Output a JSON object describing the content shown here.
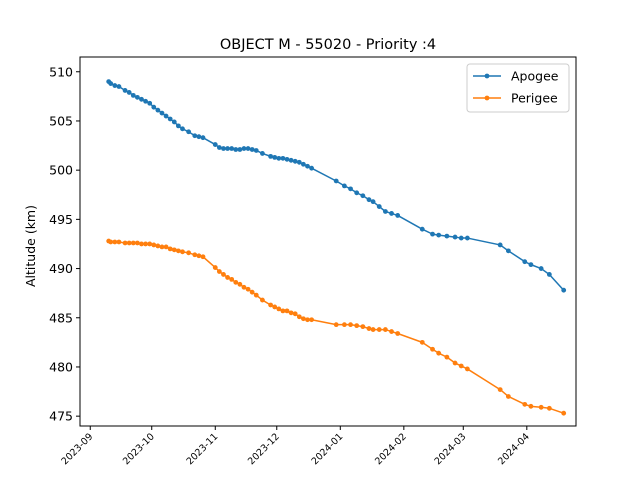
{
  "chart_data": {
    "type": "line",
    "title": "OBJECT M - 55020 - Priority :4",
    "xlabel": "",
    "ylabel": "Altitude (km)",
    "x_axis_type": "date",
    "xlim": [
      "2023-08-27",
      "2024-04-25"
    ],
    "ylim": [
      474,
      511.5
    ],
    "x_ticks": [
      "2023-09",
      "2023-10",
      "2023-11",
      "2023-12",
      "2024-01",
      "2024-02",
      "2024-03",
      "2024-04"
    ],
    "y_ticks": [
      475,
      480,
      485,
      490,
      495,
      500,
      505,
      510
    ],
    "legend_position": "upper right",
    "grid": false,
    "series": [
      {
        "name": "Apogee",
        "color": "#1f77b4",
        "marker": "circle",
        "points": [
          [
            "2023-09-10",
            509.0
          ],
          [
            "2023-09-11",
            508.8
          ],
          [
            "2023-09-13",
            508.6
          ],
          [
            "2023-09-15",
            508.5
          ],
          [
            "2023-09-18",
            508.1
          ],
          [
            "2023-09-20",
            507.9
          ],
          [
            "2023-09-22",
            507.6
          ],
          [
            "2023-09-24",
            507.4
          ],
          [
            "2023-09-26",
            507.2
          ],
          [
            "2023-09-28",
            507.0
          ],
          [
            "2023-09-30",
            506.8
          ],
          [
            "2023-10-02",
            506.4
          ],
          [
            "2023-10-04",
            506.1
          ],
          [
            "2023-10-06",
            505.8
          ],
          [
            "2023-10-08",
            505.5
          ],
          [
            "2023-10-10",
            505.2
          ],
          [
            "2023-10-12",
            504.9
          ],
          [
            "2023-10-14",
            504.5
          ],
          [
            "2023-10-16",
            504.2
          ],
          [
            "2023-10-19",
            503.9
          ],
          [
            "2023-10-22",
            503.5
          ],
          [
            "2023-10-24",
            503.4
          ],
          [
            "2023-10-26",
            503.3
          ],
          [
            "2023-11-01",
            502.6
          ],
          [
            "2023-11-03",
            502.3
          ],
          [
            "2023-11-05",
            502.2
          ],
          [
            "2023-11-07",
            502.2
          ],
          [
            "2023-11-09",
            502.2
          ],
          [
            "2023-11-11",
            502.1
          ],
          [
            "2023-11-13",
            502.1
          ],
          [
            "2023-11-15",
            502.2
          ],
          [
            "2023-11-17",
            502.2
          ],
          [
            "2023-11-19",
            502.1
          ],
          [
            "2023-11-21",
            502.0
          ],
          [
            "2023-11-24",
            501.7
          ],
          [
            "2023-11-28",
            501.4
          ],
          [
            "2023-11-30",
            501.3
          ],
          [
            "2023-12-02",
            501.2
          ],
          [
            "2023-12-04",
            501.2
          ],
          [
            "2023-12-06",
            501.1
          ],
          [
            "2023-12-08",
            501.0
          ],
          [
            "2023-12-10",
            500.9
          ],
          [
            "2023-12-12",
            500.8
          ],
          [
            "2023-12-14",
            500.6
          ],
          [
            "2023-12-16",
            500.4
          ],
          [
            "2023-12-18",
            500.2
          ],
          [
            "2023-12-30",
            498.9
          ],
          [
            "2024-01-03",
            498.4
          ],
          [
            "2024-01-06",
            498.1
          ],
          [
            "2024-01-09",
            497.7
          ],
          [
            "2024-01-12",
            497.4
          ],
          [
            "2024-01-15",
            497.0
          ],
          [
            "2024-01-17",
            496.8
          ],
          [
            "2024-01-20",
            496.3
          ],
          [
            "2024-01-23",
            495.8
          ],
          [
            "2024-01-26",
            495.6
          ],
          [
            "2024-01-29",
            495.4
          ],
          [
            "2024-02-10",
            494.0
          ],
          [
            "2024-02-15",
            493.5
          ],
          [
            "2024-02-18",
            493.4
          ],
          [
            "2024-02-22",
            493.3
          ],
          [
            "2024-02-26",
            493.2
          ],
          [
            "2024-02-29",
            493.1
          ],
          [
            "2024-03-03",
            493.1
          ],
          [
            "2024-03-19",
            492.4
          ],
          [
            "2024-03-23",
            491.8
          ],
          [
            "2024-03-31",
            490.7
          ],
          [
            "2024-04-03",
            490.4
          ],
          [
            "2024-04-08",
            490.0
          ],
          [
            "2024-04-12",
            489.4
          ],
          [
            "2024-04-19",
            487.8
          ]
        ]
      },
      {
        "name": "Perigee",
        "color": "#ff7f0e",
        "marker": "circle",
        "points": [
          [
            "2023-09-10",
            492.8
          ],
          [
            "2023-09-11",
            492.7
          ],
          [
            "2023-09-13",
            492.7
          ],
          [
            "2023-09-15",
            492.7
          ],
          [
            "2023-09-18",
            492.6
          ],
          [
            "2023-09-20",
            492.6
          ],
          [
            "2023-09-22",
            492.6
          ],
          [
            "2023-09-24",
            492.6
          ],
          [
            "2023-09-26",
            492.5
          ],
          [
            "2023-09-28",
            492.5
          ],
          [
            "2023-09-30",
            492.5
          ],
          [
            "2023-10-02",
            492.4
          ],
          [
            "2023-10-04",
            492.3
          ],
          [
            "2023-10-06",
            492.2
          ],
          [
            "2023-10-08",
            492.2
          ],
          [
            "2023-10-10",
            492.0
          ],
          [
            "2023-10-12",
            491.9
          ],
          [
            "2023-10-14",
            491.8
          ],
          [
            "2023-10-16",
            491.7
          ],
          [
            "2023-10-19",
            491.6
          ],
          [
            "2023-10-22",
            491.4
          ],
          [
            "2023-10-24",
            491.3
          ],
          [
            "2023-10-26",
            491.2
          ],
          [
            "2023-11-01",
            490.1
          ],
          [
            "2023-11-03",
            489.7
          ],
          [
            "2023-11-05",
            489.4
          ],
          [
            "2023-11-07",
            489.1
          ],
          [
            "2023-11-09",
            488.9
          ],
          [
            "2023-11-11",
            488.6
          ],
          [
            "2023-11-13",
            488.4
          ],
          [
            "2023-11-15",
            488.1
          ],
          [
            "2023-11-17",
            487.9
          ],
          [
            "2023-11-19",
            487.6
          ],
          [
            "2023-11-21",
            487.3
          ],
          [
            "2023-11-24",
            486.8
          ],
          [
            "2023-11-28",
            486.3
          ],
          [
            "2023-11-30",
            486.1
          ],
          [
            "2023-12-02",
            485.9
          ],
          [
            "2023-12-04",
            485.7
          ],
          [
            "2023-12-06",
            485.7
          ],
          [
            "2023-12-08",
            485.5
          ],
          [
            "2023-12-10",
            485.4
          ],
          [
            "2023-12-12",
            485.1
          ],
          [
            "2023-12-14",
            484.9
          ],
          [
            "2023-12-16",
            484.8
          ],
          [
            "2023-12-18",
            484.8
          ],
          [
            "2023-12-30",
            484.3
          ],
          [
            "2024-01-03",
            484.3
          ],
          [
            "2024-01-06",
            484.3
          ],
          [
            "2024-01-09",
            484.2
          ],
          [
            "2024-01-12",
            484.1
          ],
          [
            "2024-01-15",
            483.9
          ],
          [
            "2024-01-17",
            483.8
          ],
          [
            "2024-01-20",
            483.8
          ],
          [
            "2024-01-23",
            483.8
          ],
          [
            "2024-01-26",
            483.6
          ],
          [
            "2024-01-29",
            483.4
          ],
          [
            "2024-02-10",
            482.5
          ],
          [
            "2024-02-15",
            481.8
          ],
          [
            "2024-02-18",
            481.4
          ],
          [
            "2024-02-22",
            481.0
          ],
          [
            "2024-02-26",
            480.4
          ],
          [
            "2024-02-29",
            480.1
          ],
          [
            "2024-03-03",
            479.8
          ],
          [
            "2024-03-19",
            477.7
          ],
          [
            "2024-03-23",
            477.0
          ],
          [
            "2024-03-31",
            476.2
          ],
          [
            "2024-04-03",
            476.0
          ],
          [
            "2024-04-08",
            475.9
          ],
          [
            "2024-04-12",
            475.8
          ],
          [
            "2024-04-19",
            475.3
          ]
        ]
      }
    ]
  }
}
